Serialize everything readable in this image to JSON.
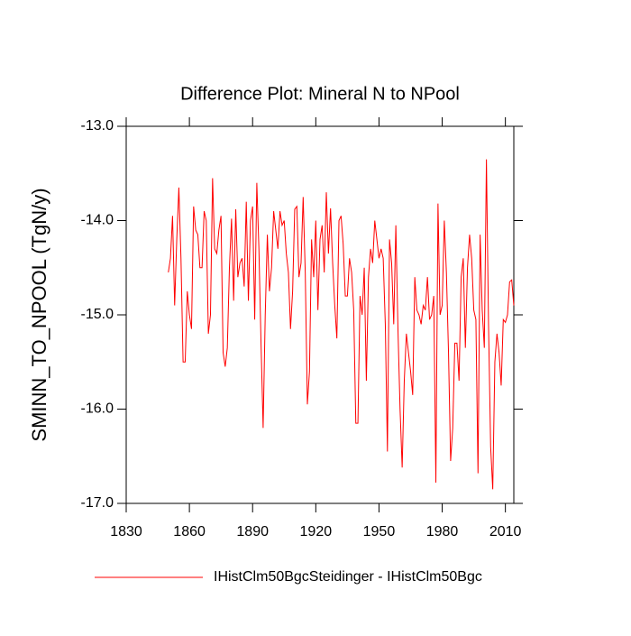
{
  "chart_data": {
    "type": "line",
    "title": "Difference Plot: Mineral N to NPool",
    "y_label": "SMINN_TO_NPOOL  (TgN/y)",
    "x": [
      1850,
      1851,
      1852,
      1853,
      1854,
      1855,
      1856,
      1857,
      1858,
      1859,
      1860,
      1861,
      1862,
      1863,
      1864,
      1865,
      1866,
      1867,
      1868,
      1869,
      1870,
      1871,
      1872,
      1873,
      1874,
      1875,
      1876,
      1877,
      1878,
      1879,
      1880,
      1881,
      1882,
      1883,
      1884,
      1885,
      1886,
      1887,
      1888,
      1889,
      1890,
      1891,
      1892,
      1893,
      1894,
      1895,
      1896,
      1897,
      1898,
      1899,
      1900,
      1901,
      1902,
      1903,
      1904,
      1905,
      1906,
      1907,
      1908,
      1909,
      1910,
      1911,
      1912,
      1913,
      1914,
      1915,
      1916,
      1917,
      1918,
      1919,
      1920,
      1921,
      1922,
      1923,
      1924,
      1925,
      1926,
      1927,
      1928,
      1929,
      1930,
      1931,
      1932,
      1933,
      1934,
      1935,
      1936,
      1937,
      1938,
      1939,
      1940,
      1941,
      1942,
      1943,
      1944,
      1945,
      1946,
      1947,
      1948,
      1949,
      1950,
      1951,
      1952,
      1953,
      1954,
      1955,
      1956,
      1957,
      1958,
      1959,
      1960,
      1961,
      1962,
      1963,
      1964,
      1965,
      1966,
      1967,
      1968,
      1969,
      1970,
      1971,
      1972,
      1973,
      1974,
      1975,
      1976,
      1977,
      1978,
      1979,
      1980,
      1981,
      1982,
      1983,
      1984,
      1985,
      1986,
      1987,
      1988,
      1989,
      1990,
      1991,
      1992,
      1993,
      1994,
      1995,
      1996,
      1997,
      1998,
      1999,
      2000,
      2001,
      2002,
      2003,
      2004,
      2005,
      2006,
      2007,
      2008,
      2009,
      2010,
      2011,
      2012,
      2013,
      2014
    ],
    "series": [
      {
        "name": "IHistClm50BgcSteidinger - IHistClm50Bgc",
        "color": "#ff0000",
        "values": [
          -14.55,
          -14.4,
          -13.95,
          -14.9,
          -14.2,
          -13.65,
          -14.4,
          -15.5,
          -15.5,
          -14.75,
          -15.0,
          -15.15,
          -13.85,
          -14.1,
          -14.15,
          -14.5,
          -14.5,
          -13.9,
          -14.0,
          -15.2,
          -15.0,
          -13.55,
          -14.3,
          -14.35,
          -14.1,
          -13.95,
          -15.4,
          -15.55,
          -15.35,
          -14.5,
          -13.98,
          -14.85,
          -13.88,
          -14.6,
          -14.45,
          -14.4,
          -14.7,
          -13.8,
          -14.85,
          -14.0,
          -13.85,
          -15.05,
          -13.6,
          -14.3,
          -15.3,
          -16.2,
          -15.0,
          -14.15,
          -14.75,
          -14.5,
          -13.9,
          -14.1,
          -14.3,
          -13.9,
          -14.05,
          -14.0,
          -14.35,
          -14.55,
          -15.15,
          -14.75,
          -13.88,
          -13.85,
          -14.6,
          -14.45,
          -13.75,
          -14.55,
          -15.95,
          -15.6,
          -14.2,
          -14.6,
          -14.0,
          -14.95,
          -14.2,
          -14.05,
          -14.55,
          -13.7,
          -14.35,
          -13.87,
          -14.45,
          -14.9,
          -15.25,
          -14.0,
          -13.95,
          -14.25,
          -14.8,
          -14.8,
          -14.4,
          -14.55,
          -14.95,
          -16.15,
          -16.15,
          -14.8,
          -15.0,
          -14.5,
          -15.7,
          -14.6,
          -14.3,
          -14.45,
          -14.0,
          -14.2,
          -14.4,
          -14.3,
          -14.4,
          -15.1,
          -16.45,
          -14.2,
          -14.45,
          -15.1,
          -14.05,
          -15.15,
          -16.0,
          -16.62,
          -15.7,
          -15.2,
          -15.4,
          -15.6,
          -15.85,
          -14.6,
          -14.95,
          -15.0,
          -15.1,
          -14.9,
          -14.95,
          -14.6,
          -15.05,
          -15.0,
          -14.8,
          -16.78,
          -13.82,
          -15.0,
          -14.9,
          -14.0,
          -14.55,
          -15.4,
          -16.55,
          -16.2,
          -15.3,
          -15.3,
          -15.7,
          -14.6,
          -14.4,
          -15.35,
          -14.5,
          -14.15,
          -14.4,
          -14.95,
          -15.05,
          -16.68,
          -14.15,
          -14.95,
          -15.35,
          -13.35,
          -15.1,
          -16.4,
          -16.85,
          -15.5,
          -15.2,
          -15.4,
          -15.75,
          -15.05,
          -15.08,
          -15.0,
          -14.65,
          -14.63,
          -14.9
        ]
      }
    ],
    "xlim": [
      1830,
      2014
    ],
    "xticks": [
      1830,
      1860,
      1890,
      1920,
      1950,
      1980,
      2010
    ],
    "ylim": [
      -17,
      -13
    ],
    "yticks": [
      {
        "value": -17,
        "label": "-17.0"
      },
      {
        "value": -16,
        "label": "-16.0"
      },
      {
        "value": -15,
        "label": "-15.0"
      },
      {
        "value": -14,
        "label": "-14.0"
      },
      {
        "value": -13,
        "label": "-13.0"
      }
    ],
    "legend": "bottom"
  }
}
